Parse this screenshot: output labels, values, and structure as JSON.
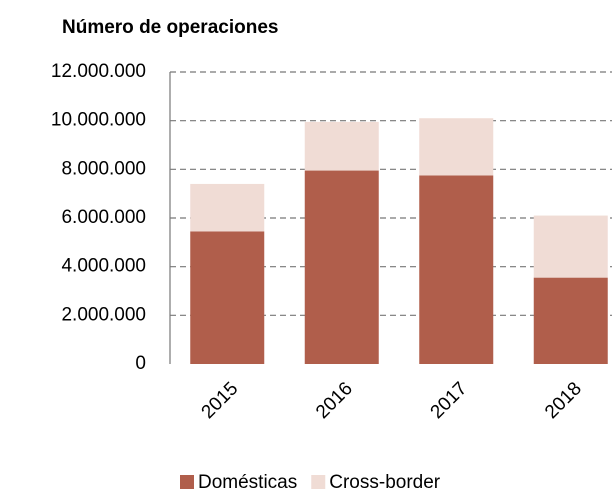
{
  "chart_data": {
    "type": "stacked_bar",
    "title": "Número de operaciones",
    "categories": [
      "2015",
      "2016",
      "2017",
      "2018"
    ],
    "series": [
      {
        "name": "Domésticas",
        "color": "#b05e4b",
        "values": [
          5450000,
          7950000,
          7750000,
          3550000
        ]
      },
      {
        "name": "Cross-border",
        "color": "#f0dcd5",
        "values": [
          1950000,
          2000000,
          2350000,
          2550000
        ]
      }
    ],
    "ylim": [
      0,
      12000000
    ],
    "yticks": [
      0,
      {
        "value": 2000000,
        "label": "2.000.000"
      },
      {
        "value": 4000000,
        "label": "4.000.000"
      },
      {
        "value": 6000000,
        "label": "6.000.000"
      },
      {
        "value": 8000000,
        "label": "8.000.000"
      },
      {
        "value": 10000000,
        "label": "10.000.000"
      },
      {
        "value": 12000000,
        "label": "12.000.000"
      }
    ],
    "grid": true,
    "legend": "bottom"
  }
}
